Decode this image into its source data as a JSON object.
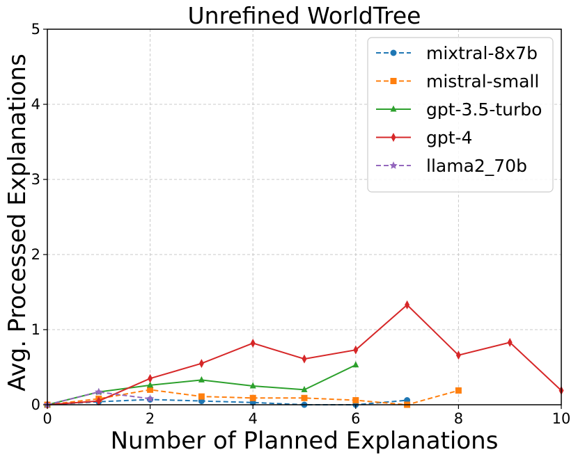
{
  "chart_data": {
    "type": "line",
    "title": "Unrefined WorldTree",
    "xlabel": "Number of Planned Explanations",
    "ylabel": "Avg. Processed Explanations",
    "xlim": [
      0,
      10
    ],
    "ylim": [
      0,
      5
    ],
    "xticks": [
      "0",
      "2",
      "4",
      "6",
      "8",
      "10"
    ],
    "yticks": [
      "0",
      "1",
      "2",
      "3",
      "4",
      "5"
    ],
    "grid": true,
    "legend_position": "top-right",
    "series": [
      {
        "name": "mixtral-8x7b",
        "color": "#1f77b4",
        "linestyle": "dashed",
        "marker": "circle",
        "x": [
          0,
          1,
          2,
          3,
          4,
          5,
          6,
          7
        ],
        "y": [
          0.0,
          0.04,
          0.07,
          0.05,
          0.03,
          0.0,
          0.0,
          0.06
        ]
      },
      {
        "name": "mistral-small",
        "color": "#ff7f0e",
        "linestyle": "dashed",
        "marker": "square",
        "x": [
          0,
          1,
          2,
          3,
          4,
          5,
          6,
          7,
          8
        ],
        "y": [
          0.0,
          0.08,
          0.2,
          0.11,
          0.09,
          0.09,
          0.06,
          0.0,
          0.19
        ]
      },
      {
        "name": "gpt-3.5-turbo",
        "color": "#2ca02c",
        "linestyle": "solid",
        "marker": "triangle",
        "x": [
          0,
          1,
          2,
          3,
          4,
          5,
          6
        ],
        "y": [
          0.0,
          0.17,
          0.26,
          0.33,
          0.25,
          0.2,
          0.53
        ]
      },
      {
        "name": "gpt-4",
        "color": "#d62728",
        "linestyle": "solid",
        "marker": "diamond",
        "x": [
          0,
          1,
          2,
          3,
          4,
          5,
          6,
          7,
          8,
          9,
          10
        ],
        "y": [
          0.0,
          0.05,
          0.35,
          0.55,
          0.82,
          0.61,
          0.73,
          1.33,
          0.66,
          0.83,
          0.19
        ]
      },
      {
        "name": "llama2_70b",
        "color": "#9467bd",
        "linestyle": "dashed",
        "marker": "star",
        "x": [
          0,
          1,
          2
        ],
        "y": [
          0.0,
          0.17,
          0.08
        ]
      }
    ]
  }
}
